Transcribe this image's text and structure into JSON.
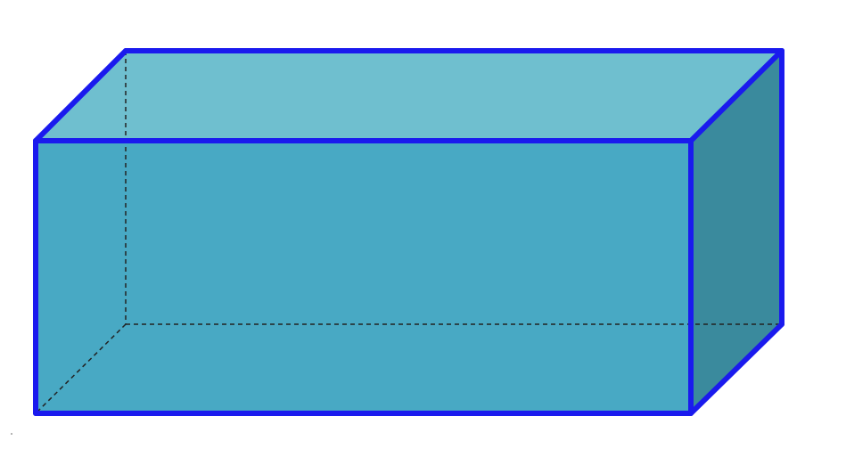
{
  "figure": {
    "shape": "rectangular-prism",
    "colors": {
      "background": "#ffffff",
      "top_face": "#6fbfcf",
      "front_face": "#48a9c4",
      "side_face": "#3a8a9d",
      "back_face": "#52b0c8",
      "visible_edge": "#1a1aee",
      "hidden_edge": "#222222"
    },
    "hidden_edge_style": "dashed"
  }
}
